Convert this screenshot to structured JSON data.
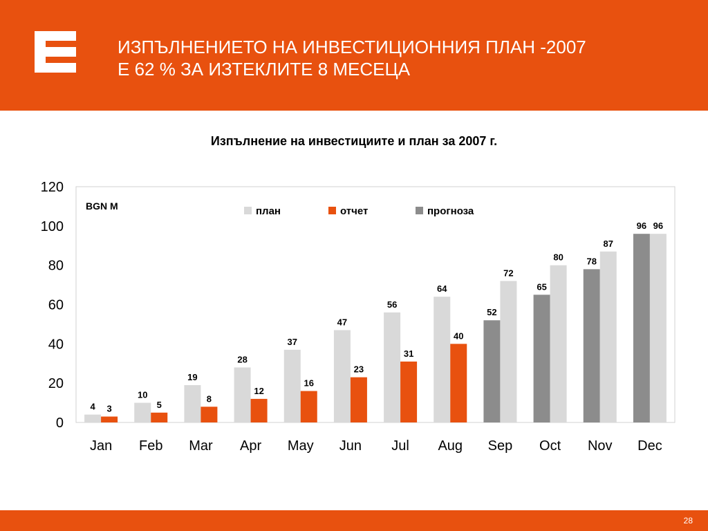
{
  "slide": {
    "title_line1": "ИЗПЪЛНЕНИЕТО НА ИНВЕСТИЦИОННИЯ ПЛАН -2007",
    "title_line2": "Е 62 % ЗА ИЗТЕКЛИТЕ 8 МЕСЕЦА",
    "page_number": "28",
    "logo_icon": "cez-logo-icon"
  },
  "colors": {
    "brand": "#e8510f",
    "plan": "#d9d9d9",
    "actual": "#e8510f",
    "forecast": "#8c8c8c"
  },
  "chart_data": {
    "type": "bar",
    "title": "Изпълнение на инвестициите и план за 2007 г.",
    "unit_label": "BGN M",
    "categories": [
      "Jan",
      "Feb",
      "Mar",
      "Apr",
      "May",
      "Jun",
      "Jul",
      "Aug",
      "Sep",
      "Oct",
      "Nov",
      "Dec"
    ],
    "ylim": [
      0,
      120
    ],
    "yticks": [
      0,
      20,
      40,
      60,
      80,
      100,
      120
    ],
    "grid": false,
    "legend_position": "top-center",
    "series": [
      {
        "name": "план",
        "values": [
          4,
          10,
          19,
          28,
          37,
          47,
          56,
          64,
          72,
          80,
          87,
          96
        ]
      },
      {
        "name": "отчет",
        "values": [
          3,
          5,
          8,
          12,
          16,
          23,
          31,
          40,
          null,
          null,
          null,
          null
        ]
      },
      {
        "name": "прогноза",
        "values": [
          null,
          null,
          null,
          null,
          null,
          null,
          null,
          null,
          52,
          65,
          78,
          96
        ]
      }
    ]
  }
}
